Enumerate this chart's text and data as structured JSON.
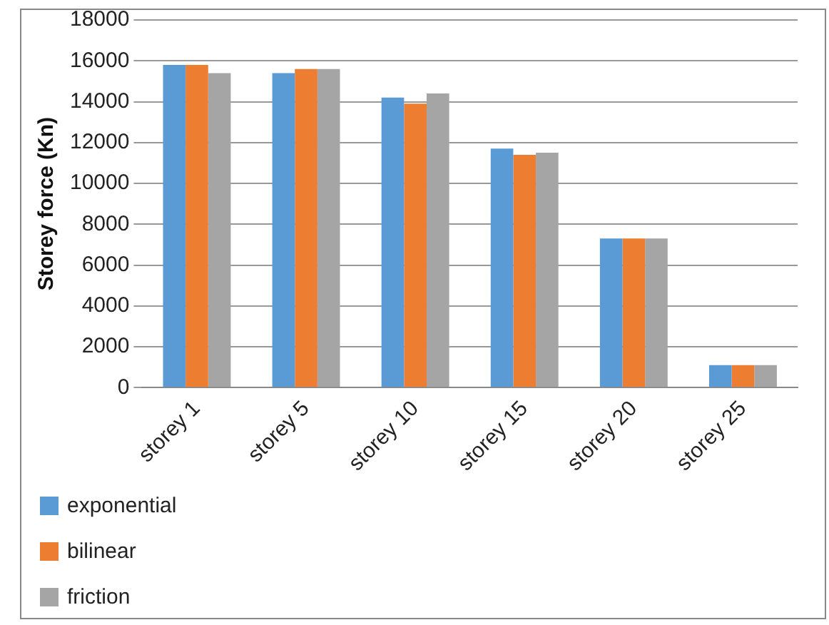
{
  "chart_data": {
    "type": "bar",
    "ylabel": "Storey force (Kn)",
    "categories": [
      "storey 1",
      "storey 5",
      "storey 10",
      "storey 15",
      "storey 20",
      "storey 25"
    ],
    "series": [
      {
        "name": "exponential",
        "color": "#5b9bd5",
        "values": [
          15800,
          15400,
          14200,
          11700,
          7300,
          1100
        ]
      },
      {
        "name": "bilinear",
        "color": "#ed7d31",
        "values": [
          15800,
          15600,
          13900,
          11400,
          7300,
          1100
        ]
      },
      {
        "name": "friction",
        "color": "#a5a5a5",
        "values": [
          15400,
          15600,
          14400,
          11500,
          7300,
          1100
        ]
      }
    ],
    "ylim": [
      0,
      18000
    ],
    "yticks": [
      0,
      2000,
      4000,
      6000,
      8000,
      10000,
      12000,
      14000,
      16000,
      18000
    ],
    "grid": "y",
    "legend": "bottom left"
  }
}
